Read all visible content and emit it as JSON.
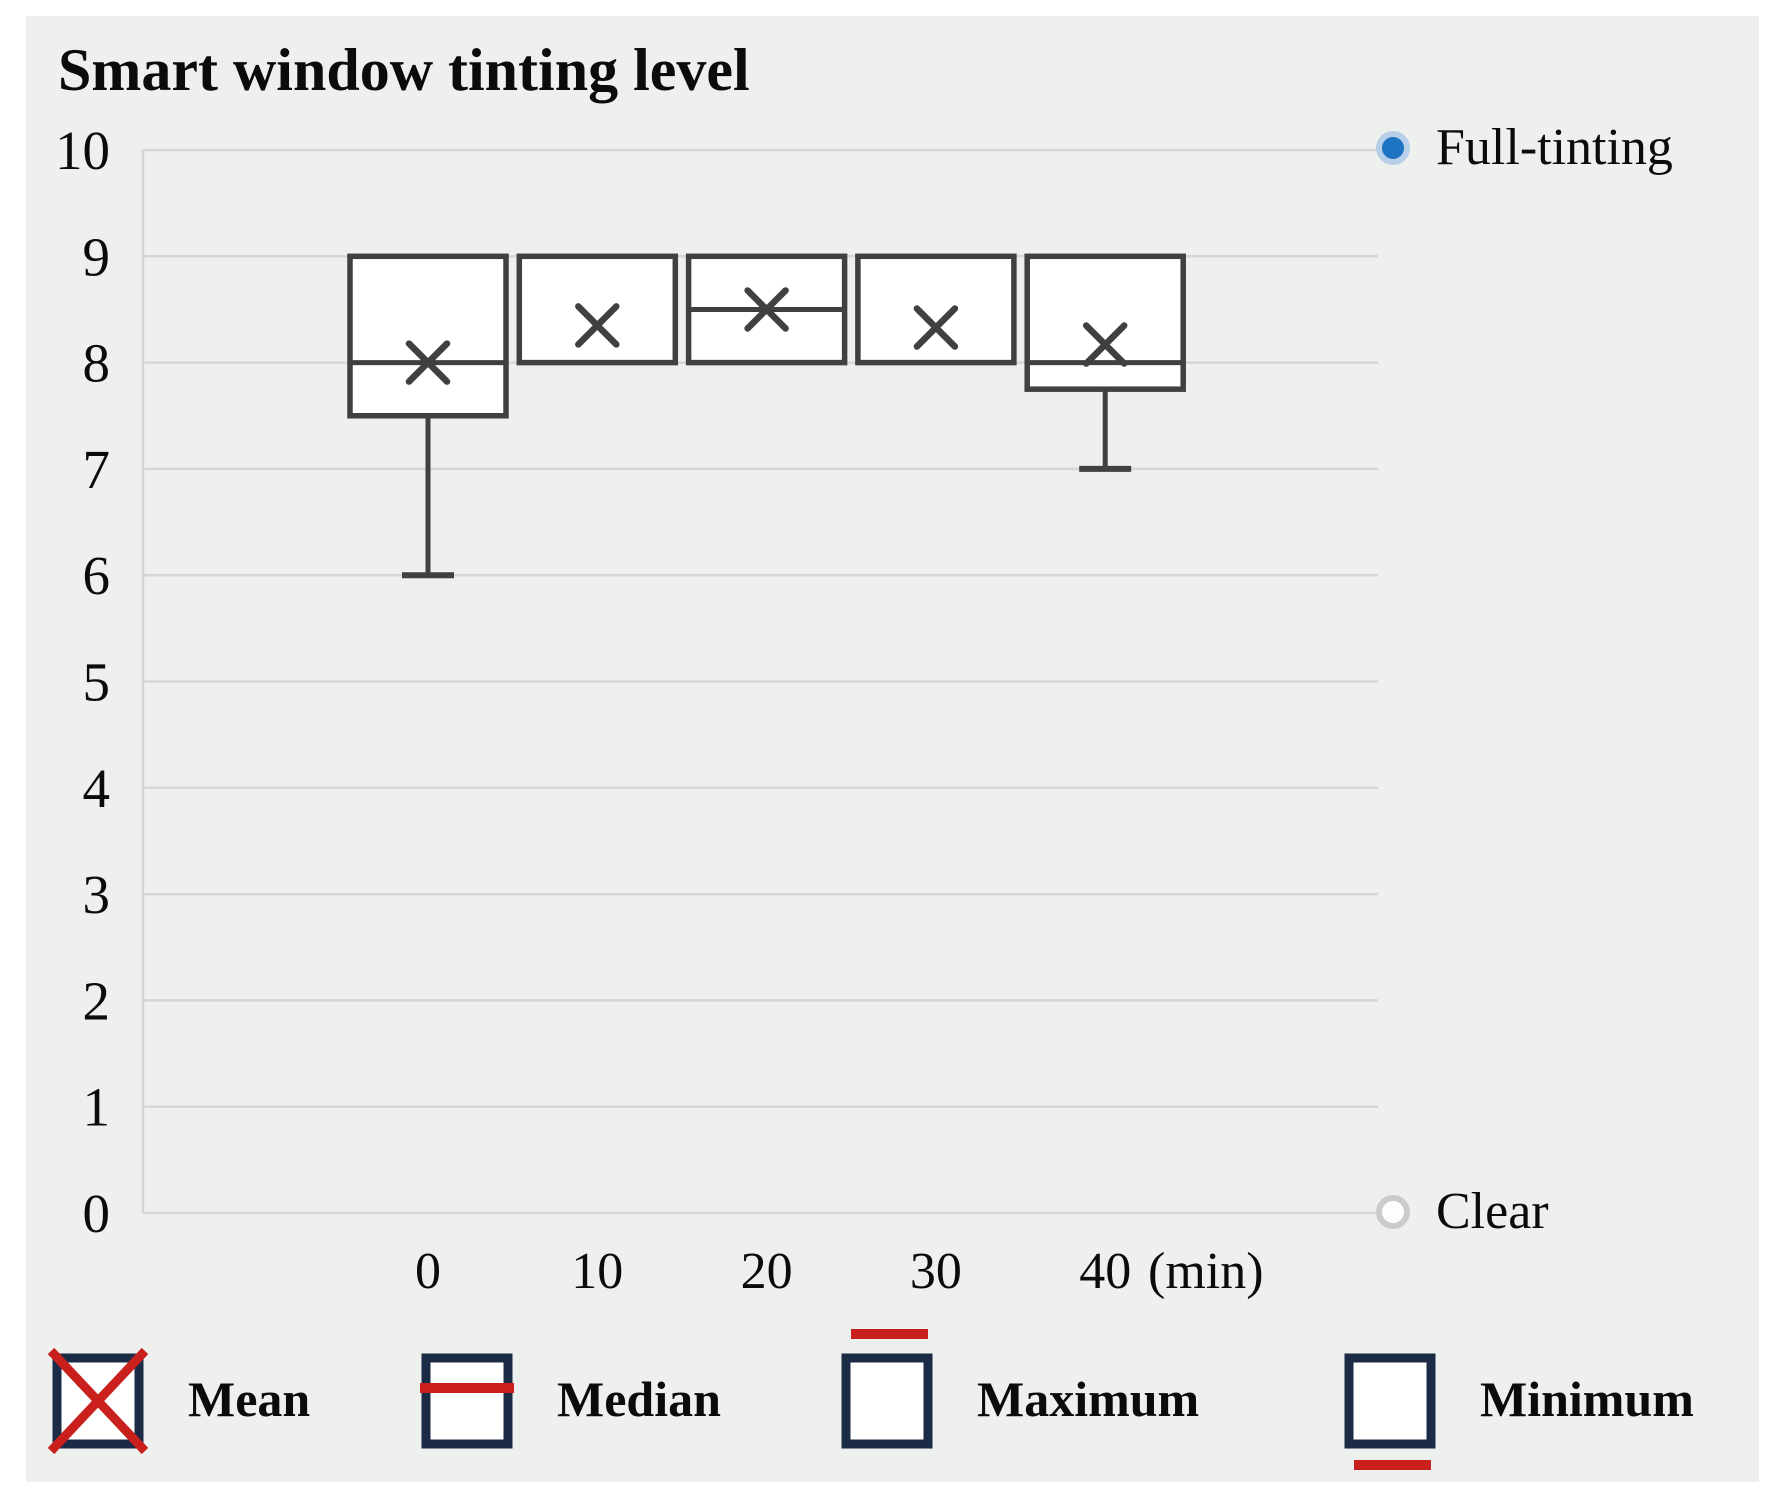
{
  "chart_data": {
    "type": "boxplot",
    "title": "Smart window tinting level",
    "xlabel": "",
    "ylabel": "",
    "x_axis_unit": "(min)",
    "ylim": [
      0,
      10
    ],
    "yticks": [
      0,
      1,
      2,
      3,
      4,
      5,
      6,
      7,
      8,
      9,
      10
    ],
    "grid": true,
    "categories": [
      "0",
      "10",
      "20",
      "30",
      "40"
    ],
    "boxes": [
      {
        "category": "0",
        "box_top": 9,
        "median": 8,
        "box_bottom": 7.5,
        "whisker_low": 6,
        "mean": 8.0
      },
      {
        "category": "10",
        "box_top": 9,
        "median": null,
        "box_bottom": 8,
        "whisker_low": null,
        "mean": 8.35
      },
      {
        "category": "20",
        "box_top": 9,
        "median": 8.5,
        "box_bottom": 8,
        "whisker_low": null,
        "mean": 8.5
      },
      {
        "category": "30",
        "box_top": 9,
        "median": null,
        "box_bottom": 8,
        "whisker_low": null,
        "mean": 8.33
      },
      {
        "category": "40",
        "box_top": 9,
        "median": 8,
        "box_bottom": 7.75,
        "whisker_low": 7,
        "mean": 8.17
      }
    ],
    "annotations": [
      {
        "label": "Full-tinting",
        "value": 10,
        "marker": "filled-blue-circle"
      },
      {
        "label": "Clear",
        "value": 0,
        "marker": "hollow-circle"
      }
    ],
    "legend_position": "bottom"
  },
  "legend": {
    "items": [
      {
        "label": "Mean",
        "icon": "navy-box-with-red-x"
      },
      {
        "label": "Median",
        "icon": "navy-box-with-red-midline"
      },
      {
        "label": "Maximum",
        "icon": "red-line-above-navy-box"
      },
      {
        "label": "Minimum",
        "icon": "red-line-below-navy-box"
      }
    ]
  },
  "colors": {
    "panel_background": "#eef0ee",
    "gridline": "#d6d7d5",
    "box_stroke": "#3f4040",
    "box_fill": "#ffffff",
    "legend_navy": "#1b2b45",
    "legend_red": "#c9201e",
    "full_tinting_dot": "#1d72c1",
    "full_tinting_ring": "#b7cfe8",
    "clear_dot_ring": "#cbccca",
    "text": "#0b0b0b"
  }
}
